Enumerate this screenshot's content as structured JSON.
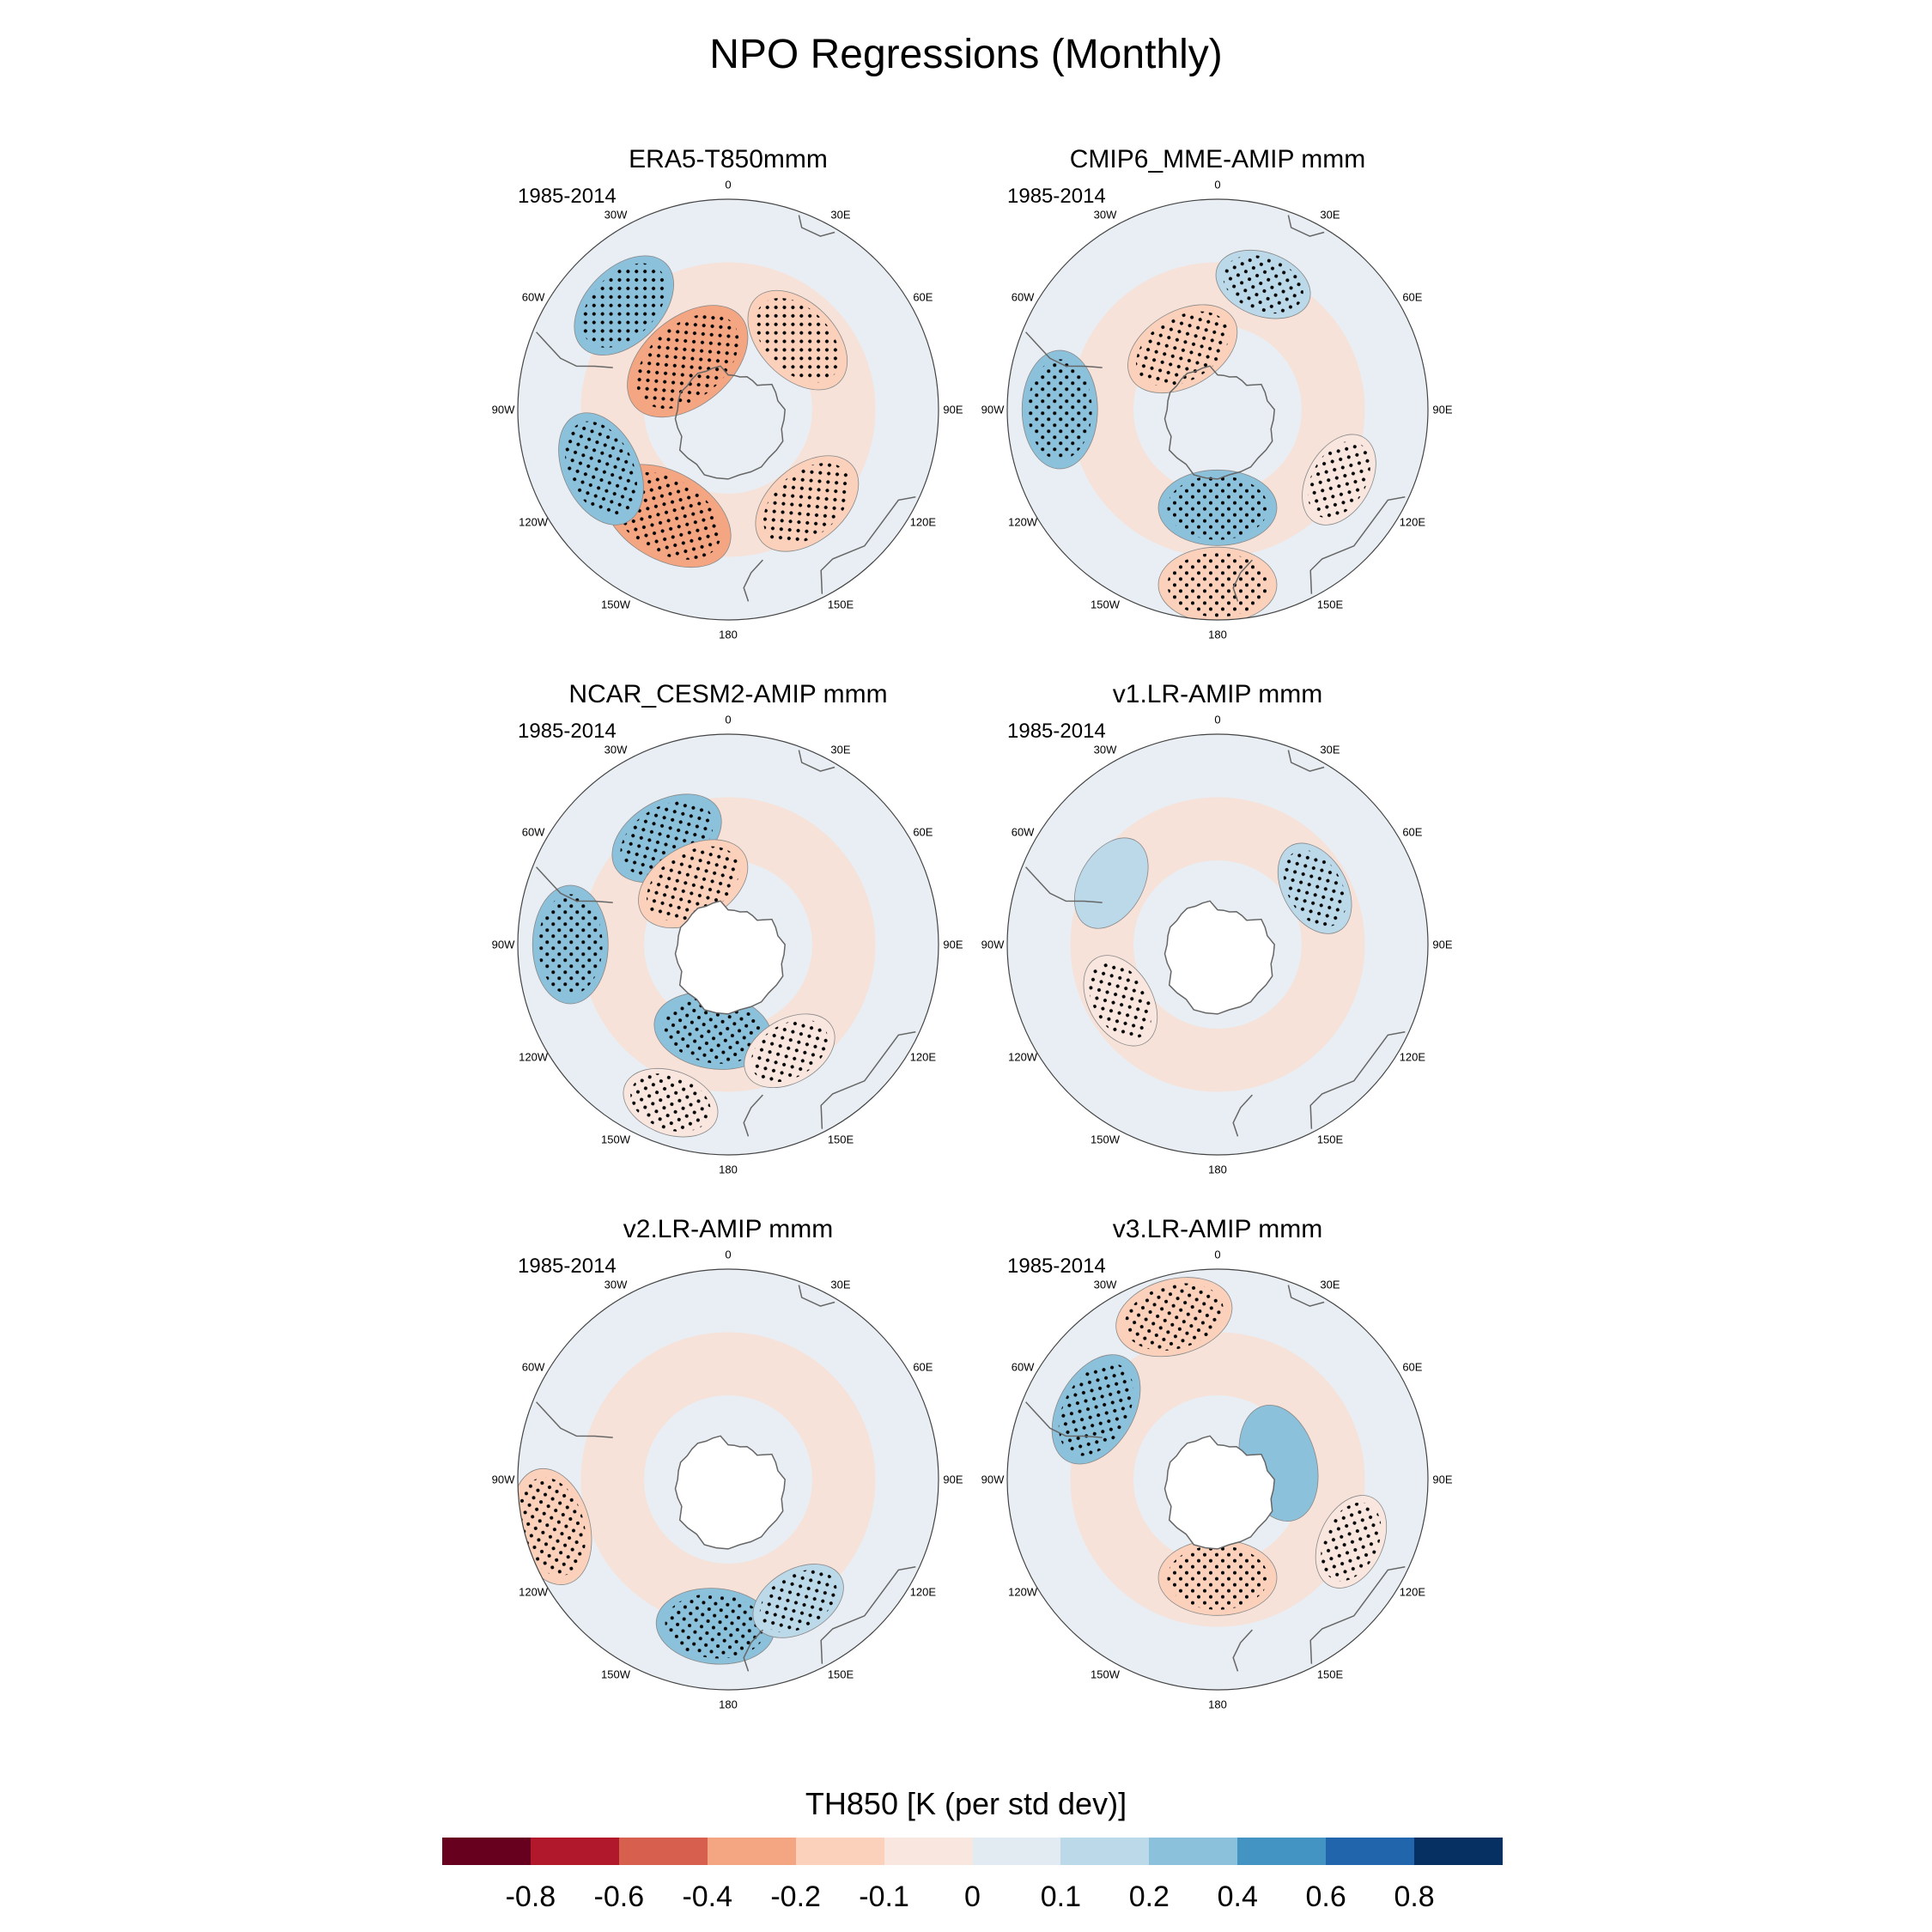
{
  "main_title": "NPO Regressions (Monthly)",
  "period": "1985-2014",
  "longitude_labels": {
    "0": "0",
    "30E": "30E",
    "60E": "60E",
    "90E": "90E",
    "120E": "120E",
    "150E": "150E",
    "180": "180",
    "150W": "150W",
    "120W": "120W",
    "90W": "90W",
    "60W": "60W",
    "30W": "30W"
  },
  "panels": [
    {
      "title": "ERA5-T850mmm"
    },
    {
      "title": "CMIP6_MME-AMIP  mmm"
    },
    {
      "title": "NCAR_CESM2-AMIP  mmm"
    },
    {
      "title": "v1.LR-AMIP  mmm"
    },
    {
      "title": "v2.LR-AMIP  mmm"
    },
    {
      "title": "v3.LR-AMIP  mmm"
    }
  ],
  "colorbar": {
    "title": "TH850 [K (per std dev)]",
    "labels": [
      "-0.8",
      "-0.6",
      "-0.4",
      "-0.2",
      "-0.1",
      "0",
      "0.1",
      "0.2",
      "0.4",
      "0.6",
      "0.8"
    ],
    "colors": [
      "#67001f",
      "#b2182b",
      "#d6604d",
      "#f4a582",
      "#fbd1bb",
      "#f9e6df",
      "#e2ebf1",
      "#bcd9ea",
      "#8cc1dc",
      "#4393c3",
      "#2166ac",
      "#053061"
    ]
  },
  "chart_data": {
    "type": "heatmap",
    "projection": "south polar stereographic",
    "variable": "TH850",
    "units": "K (per std dev)",
    "levels": [
      -0.8,
      -0.6,
      -0.4,
      -0.2,
      -0.1,
      0,
      0.1,
      0.2,
      0.4,
      0.6,
      0.8
    ],
    "panels": [
      {
        "title": "ERA5-T850mmm",
        "period": "1985-2014",
        "anomalies": [
          {
            "lon": 210,
            "lat": -55,
            "value": -0.3,
            "stippled": true
          },
          {
            "lon": 315,
            "lat": -48,
            "value": 0.2,
            "stippled": true
          },
          {
            "lon": 320,
            "lat": -72,
            "value": -0.3,
            "stippled": true
          },
          {
            "lon": 140,
            "lat": -55,
            "value": -0.2,
            "stippled": true
          },
          {
            "lon": 45,
            "lat": -62,
            "value": -0.2,
            "stippled": true
          },
          {
            "lon": 245,
            "lat": -50,
            "value": 0.2,
            "stippled": true
          }
        ]
      },
      {
        "title": "CMIP6_MME-AMIP  mmm",
        "period": "1985-2014",
        "anomalies": [
          {
            "lon": 270,
            "lat": -45,
            "value": 0.2,
            "stippled": true
          },
          {
            "lon": 180,
            "lat": -62,
            "value": 0.2,
            "stippled": true
          },
          {
            "lon": 20,
            "lat": -52,
            "value": 0.1,
            "stippled": true
          },
          {
            "lon": 120,
            "lat": -50,
            "value": -0.1,
            "stippled": true
          },
          {
            "lon": 180,
            "lat": -40,
            "value": -0.2,
            "stippled": true
          },
          {
            "lon": 330,
            "lat": -70,
            "value": -0.2,
            "stippled": true
          }
        ]
      },
      {
        "title": "NCAR_CESM2-AMIP  mmm",
        "period": "1985-2014",
        "anomalies": [
          {
            "lon": 270,
            "lat": -45,
            "value": 0.2,
            "stippled": true
          },
          {
            "lon": 330,
            "lat": -55,
            "value": 0.2,
            "stippled": true
          },
          {
            "lon": 190,
            "lat": -65,
            "value": 0.2,
            "stippled": true
          },
          {
            "lon": 330,
            "lat": -70,
            "value": -0.2,
            "stippled": true
          },
          {
            "lon": 150,
            "lat": -55,
            "value": -0.1,
            "stippled": true
          },
          {
            "lon": 200,
            "lat": -42,
            "value": -0.1,
            "stippled": true
          }
        ]
      },
      {
        "title": "v1.LR-AMIP  mmm",
        "period": "1985-2014",
        "anomalies": [
          {
            "lon": 240,
            "lat": -58,
            "value": -0.1,
            "stippled": true
          },
          {
            "lon": 60,
            "lat": -58,
            "value": 0.1,
            "stippled": true
          },
          {
            "lon": 300,
            "lat": -55,
            "value": 0.1,
            "stippled": false
          }
        ]
      },
      {
        "title": "v2.LR-AMIP  mmm",
        "period": "1985-2014",
        "anomalies": [
          {
            "lon": 185,
            "lat": -48,
            "value": 0.2,
            "stippled": true
          },
          {
            "lon": 255,
            "lat": -38,
            "value": -0.2,
            "stippled": true
          },
          {
            "lon": 150,
            "lat": -50,
            "value": 0.1,
            "stippled": true
          }
        ]
      },
      {
        "title": "v3.LR-AMIP  mmm",
        "period": "1985-2014",
        "anomalies": [
          {
            "lon": 345,
            "lat": -42,
            "value": -0.2,
            "stippled": true
          },
          {
            "lon": 300,
            "lat": -50,
            "value": 0.2,
            "stippled": true
          },
          {
            "lon": 180,
            "lat": -62,
            "value": -0.2,
            "stippled": true
          },
          {
            "lon": 115,
            "lat": -48,
            "value": -0.1,
            "stippled": true
          },
          {
            "lon": 75,
            "lat": -72,
            "value": 0.2,
            "stippled": false
          }
        ]
      }
    ]
  }
}
